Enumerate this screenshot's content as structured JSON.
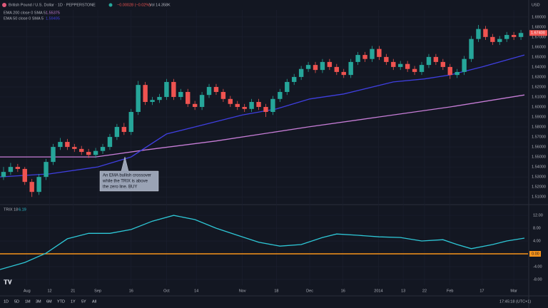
{
  "header": {
    "symbol": "British Pound / U.S. Dollar · 1D · PEPPERSTONE",
    "change": "−0.00028 (−0.02%)",
    "volume": "Vol 14.358K",
    "currency": "USD"
  },
  "chart_data": [
    {
      "type": "candlestick",
      "up_color": "#26a69a",
      "down_color": "#ef5350",
      "grid": true,
      "xlim": [
        -0.5,
        74
      ],
      "ylim": [
        1.503,
        1.697
      ],
      "xticks": [
        {
          "value": 3.3,
          "label": "Aug"
        },
        {
          "value": 6.5,
          "label": "12"
        },
        {
          "value": 9.8,
          "label": "21"
        },
        {
          "value": 13.3,
          "label": "Sep"
        },
        {
          "value": 18,
          "label": "16"
        },
        {
          "value": 23,
          "label": "Oct"
        },
        {
          "value": 27.2,
          "label": "14"
        },
        {
          "value": 33.7,
          "label": "Nov"
        },
        {
          "value": 38.5,
          "label": "18"
        },
        {
          "value": 43.2,
          "label": "Dec"
        },
        {
          "value": 47.9,
          "label": "16"
        },
        {
          "value": 52.9,
          "label": "2014"
        },
        {
          "value": 56.4,
          "label": "13"
        },
        {
          "value": 59.4,
          "label": "22"
        },
        {
          "value": 63,
          "label": "Feb"
        },
        {
          "value": 67.5,
          "label": "17"
        },
        {
          "value": 72,
          "label": "Mar"
        }
      ],
      "yticks": [
        {
          "value": 1.69,
          "label": "1.69000"
        },
        {
          "value": 1.68,
          "label": "1.68000"
        },
        {
          "value": 1.67,
          "label": "1.67000"
        },
        {
          "value": 1.66,
          "label": "1.66000"
        },
        {
          "value": 1.65,
          "label": "1.65000"
        },
        {
          "value": 1.64,
          "label": "1.64000"
        },
        {
          "value": 1.63,
          "label": "1.63000"
        },
        {
          "value": 1.62,
          "label": "1.62000"
        },
        {
          "value": 1.61,
          "label": "1.61000"
        },
        {
          "value": 1.6,
          "label": "1.60000"
        },
        {
          "value": 1.59,
          "label": "1.59000"
        },
        {
          "value": 1.58,
          "label": "1.58000"
        },
        {
          "value": 1.57,
          "label": "1.57000"
        },
        {
          "value": 1.56,
          "label": "1.56000"
        },
        {
          "value": 1.55,
          "label": "1.55000"
        },
        {
          "value": 1.54,
          "label": "1.54000"
        },
        {
          "value": 1.53,
          "label": "1.53000"
        },
        {
          "value": 1.52,
          "label": "1.52000"
        },
        {
          "value": 1.51,
          "label": "1.51000"
        }
      ],
      "price_tag": {
        "value": 1.674,
        "label": "1.67400"
      },
      "ohlc": [
        [
          1.53,
          1.54,
          1.527,
          1.535
        ],
        [
          1.535,
          1.544,
          1.532,
          1.54
        ],
        [
          1.54,
          1.543,
          1.535,
          1.538
        ],
        [
          1.538,
          1.54,
          1.522,
          1.525
        ],
        [
          1.525,
          1.528,
          1.51,
          1.515
        ],
        [
          1.515,
          1.533,
          1.512,
          1.53
        ],
        [
          1.53,
          1.548,
          1.527,
          1.545
        ],
        [
          1.545,
          1.563,
          1.542,
          1.56
        ],
        [
          1.56,
          1.569,
          1.557,
          1.565
        ],
        [
          1.565,
          1.568,
          1.557,
          1.56
        ],
        [
          1.56,
          1.563,
          1.555,
          1.558
        ],
        [
          1.558,
          1.561,
          1.552,
          1.555
        ],
        [
          1.555,
          1.558,
          1.549,
          1.552
        ],
        [
          1.552,
          1.559,
          1.549,
          1.556
        ],
        [
          1.556,
          1.563,
          1.553,
          1.56
        ],
        [
          1.56,
          1.573,
          1.557,
          1.57
        ],
        [
          1.57,
          1.583,
          1.567,
          1.58
        ],
        [
          1.58,
          1.584,
          1.572,
          1.575
        ],
        [
          1.575,
          1.598,
          1.572,
          1.595
        ],
        [
          1.595,
          1.626,
          1.592,
          1.622
        ],
        [
          1.622,
          1.625,
          1.602,
          1.605
        ],
        [
          1.605,
          1.61,
          1.602,
          1.607
        ],
        [
          1.607,
          1.613,
          1.604,
          1.61
        ],
        [
          1.61,
          1.628,
          1.607,
          1.625
        ],
        [
          1.625,
          1.628,
          1.607,
          1.61
        ],
        [
          1.61,
          1.618,
          1.607,
          1.615
        ],
        [
          1.615,
          1.618,
          1.6,
          1.603
        ],
        [
          1.603,
          1.606,
          1.597,
          1.6
        ],
        [
          1.6,
          1.615,
          1.597,
          1.612
        ],
        [
          1.612,
          1.623,
          1.609,
          1.62
        ],
        [
          1.62,
          1.623,
          1.612,
          1.615
        ],
        [
          1.615,
          1.618,
          1.605,
          1.608
        ],
        [
          1.608,
          1.611,
          1.6,
          1.603
        ],
        [
          1.603,
          1.606,
          1.597,
          1.6
        ],
        [
          1.6,
          1.603,
          1.595,
          1.598
        ],
        [
          1.598,
          1.608,
          1.595,
          1.605
        ],
        [
          1.605,
          1.608,
          1.597,
          1.6
        ],
        [
          1.6,
          1.603,
          1.59,
          1.595
        ],
        [
          1.595,
          1.611,
          1.592,
          1.608
        ],
        [
          1.608,
          1.618,
          1.605,
          1.615
        ],
        [
          1.615,
          1.628,
          1.612,
          1.625
        ],
        [
          1.625,
          1.633,
          1.622,
          1.63
        ],
        [
          1.63,
          1.641,
          1.627,
          1.638
        ],
        [
          1.638,
          1.645,
          1.635,
          1.642
        ],
        [
          1.642,
          1.645,
          1.634,
          1.637
        ],
        [
          1.637,
          1.648,
          1.634,
          1.645
        ],
        [
          1.645,
          1.648,
          1.637,
          1.64
        ],
        [
          1.64,
          1.643,
          1.632,
          1.635
        ],
        [
          1.635,
          1.638,
          1.629,
          1.632
        ],
        [
          1.632,
          1.648,
          1.629,
          1.645
        ],
        [
          1.645,
          1.655,
          1.642,
          1.652
        ],
        [
          1.652,
          1.655,
          1.645,
          1.648
        ],
        [
          1.648,
          1.661,
          1.645,
          1.658
        ],
        [
          1.658,
          1.661,
          1.647,
          1.65
        ],
        [
          1.65,
          1.653,
          1.642,
          1.645
        ],
        [
          1.645,
          1.648,
          1.637,
          1.64
        ],
        [
          1.64,
          1.646,
          1.637,
          1.643
        ],
        [
          1.643,
          1.646,
          1.635,
          1.638
        ],
        [
          1.638,
          1.641,
          1.632,
          1.635
        ],
        [
          1.635,
          1.645,
          1.632,
          1.642
        ],
        [
          1.642,
          1.653,
          1.639,
          1.65
        ],
        [
          1.65,
          1.653,
          1.642,
          1.645
        ],
        [
          1.645,
          1.648,
          1.637,
          1.64
        ],
        [
          1.64,
          1.643,
          1.628,
          1.632
        ],
        [
          1.632,
          1.638,
          1.629,
          1.635
        ],
        [
          1.635,
          1.651,
          1.632,
          1.648
        ],
        [
          1.648,
          1.671,
          1.645,
          1.668
        ],
        [
          1.668,
          1.682,
          1.665,
          1.678
        ],
        [
          1.678,
          1.681,
          1.667,
          1.67
        ],
        [
          1.67,
          1.673,
          1.662,
          1.665
        ],
        [
          1.665,
          1.671,
          1.662,
          1.668
        ],
        [
          1.668,
          1.675,
          1.665,
          1.672
        ],
        [
          1.672,
          1.675,
          1.667,
          1.67
        ],
        [
          1.67,
          1.677,
          1.667,
          1.674
        ]
      ],
      "series": [
        {
          "name": "EMA 200 close 0 SMA 5",
          "legend_value": "1.55375",
          "color": "#c77dd7",
          "x": [
            -0.5,
            13,
            20,
            30,
            43,
            53,
            63,
            73.5
          ],
          "values": [
            1.55,
            1.55,
            1.557,
            1.566,
            1.58,
            1.59,
            1.6,
            1.612
          ]
        },
        {
          "name": "EMA 50 close 0 SMA 5",
          "legend_value": "1.59495",
          "color": "#3f3fe0",
          "x": [
            -0.5,
            6.5,
            13.3,
            18,
            23,
            27,
            33.7,
            38.5,
            43.2,
            48,
            55,
            59.4,
            63,
            67.5,
            73.5
          ],
          "values": [
            1.53,
            1.533,
            1.54,
            1.55,
            1.573,
            1.58,
            1.592,
            1.598,
            1.608,
            1.613,
            1.625,
            1.628,
            1.632,
            1.64,
            1.652
          ]
        }
      ],
      "annotation": [
        "An EMA bullish crossover",
        "while the TRIX is above",
        "the zero line. BUY"
      ]
    },
    {
      "type": "line",
      "name": "TRIX 18",
      "legend_value": "6.19",
      "color": "#2ec7d6",
      "xlim": [
        -0.5,
        74
      ],
      "ylim": [
        -9.8,
        14.7
      ],
      "yticks": [
        {
          "value": 12,
          "label": "12.00"
        },
        {
          "value": 8,
          "label": "8.00"
        },
        {
          "value": 4,
          "label": "4.00"
        },
        {
          "value": -4,
          "label": "-4.00"
        },
        {
          "value": -8,
          "label": "-8.00"
        }
      ],
      "zero_line": {
        "value": 0,
        "label": "0.00",
        "color": "#f7931a"
      },
      "x": [
        -0.5,
        3,
        6,
        9,
        12,
        15,
        18,
        21,
        24,
        27,
        30,
        33,
        36,
        39,
        42,
        45,
        47,
        50,
        53,
        56,
        59,
        62,
        64,
        66,
        69,
        71,
        73.5
      ],
      "values": [
        -4.9,
        -2.7,
        0.2,
        4.7,
        6.4,
        6.4,
        7.6,
        10.2,
        12,
        10.7,
        8,
        5.8,
        3.6,
        2.4,
        2.9,
        5.1,
        6.2,
        5.8,
        5.3,
        5.1,
        4,
        4.4,
        2.9,
        1.6,
        2.9,
        4,
        4.9
      ]
    }
  ],
  "bottom_bar": {
    "ranges": [
      "1D",
      "5D",
      "1M",
      "3M",
      "6M",
      "YTD",
      "1Y",
      "5Y",
      "All"
    ],
    "clock": "17:45:18 (UTC+1)"
  }
}
